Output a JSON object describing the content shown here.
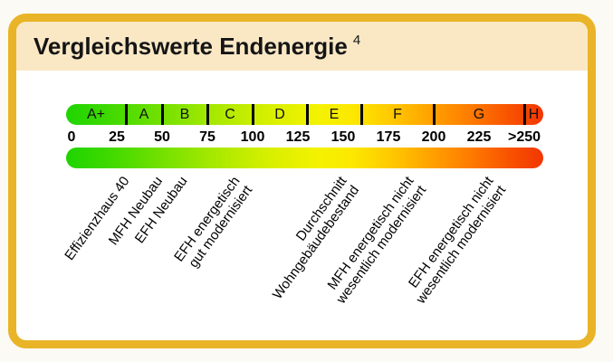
{
  "style": {
    "page_background": "#FCFAF4",
    "panel_border_color": "#E9B427",
    "title_band_color": "#FAE8C5",
    "panel_background": "#FFFFFF",
    "tick_color": "#000000",
    "text_color": "#151515"
  },
  "chart_data": {
    "type": "bar",
    "title": "Vergleichswerte Endenergie",
    "title_superscript": "4",
    "xlim": [
      0,
      260
    ],
    "grid": false,
    "legend": false,
    "classes": [
      {
        "letter": "A+",
        "from": 0,
        "to": 30
      },
      {
        "letter": "A",
        "from": 30,
        "to": 50
      },
      {
        "letter": "B",
        "from": 50,
        "to": 75
      },
      {
        "letter": "C",
        "from": 75,
        "to": 100
      },
      {
        "letter": "D",
        "from": 100,
        "to": 130
      },
      {
        "letter": "E",
        "from": 130,
        "to": 160
      },
      {
        "letter": "F",
        "from": 160,
        "to": 200
      },
      {
        "letter": "G",
        "from": 200,
        "to": 250
      },
      {
        "letter": "H",
        "from": 250,
        "to": 260
      }
    ],
    "axis_tick_labels": [
      {
        "label": "0",
        "value": 0
      },
      {
        "label": "25",
        "value": 25
      },
      {
        "label": "50",
        "value": 50
      },
      {
        "label": "75",
        "value": 75
      },
      {
        "label": "100",
        "value": 100
      },
      {
        "label": "125",
        "value": 125
      },
      {
        "label": "150",
        "value": 150
      },
      {
        "label": "175",
        "value": 175
      },
      {
        "label": "200",
        "value": 200
      },
      {
        "label": "225",
        "value": 225
      },
      {
        "label": ">250",
        "value": 250
      }
    ],
    "annotations": [
      {
        "lines": [
          "Effizienzhaus 40"
        ],
        "value": 27
      },
      {
        "lines": [
          "MFH Neubau"
        ],
        "value": 45
      },
      {
        "lines": [
          "EFH Neubau"
        ],
        "value": 59
      },
      {
        "lines": [
          "EFH energetisch",
          "gut modernisiert"
        ],
        "value": 88
      },
      {
        "lines": [
          "Durchschnitt",
          "Wohngebäudebestand"
        ],
        "value": 147
      },
      {
        "lines": [
          "MFH energetisch nicht",
          "wesentlich modernisiert"
        ],
        "value": 184
      },
      {
        "lines": [
          "EFH energetisch nicht",
          "wesentlich modernisiert"
        ],
        "value": 228
      }
    ],
    "gradient_stops": [
      {
        "pos": 0,
        "color": "#1FD400"
      },
      {
        "pos": 9,
        "color": "#3FD900"
      },
      {
        "pos": 18,
        "color": "#6ADF00"
      },
      {
        "pos": 30,
        "color": "#A3E800"
      },
      {
        "pos": 42,
        "color": "#D6EF00"
      },
      {
        "pos": 53,
        "color": "#F4F200"
      },
      {
        "pos": 60,
        "color": "#FCE800"
      },
      {
        "pos": 68,
        "color": "#FFC900"
      },
      {
        "pos": 77,
        "color": "#FF9F00"
      },
      {
        "pos": 85,
        "color": "#FE7A00"
      },
      {
        "pos": 93,
        "color": "#F85200"
      },
      {
        "pos": 100,
        "color": "#F23600"
      }
    ]
  }
}
